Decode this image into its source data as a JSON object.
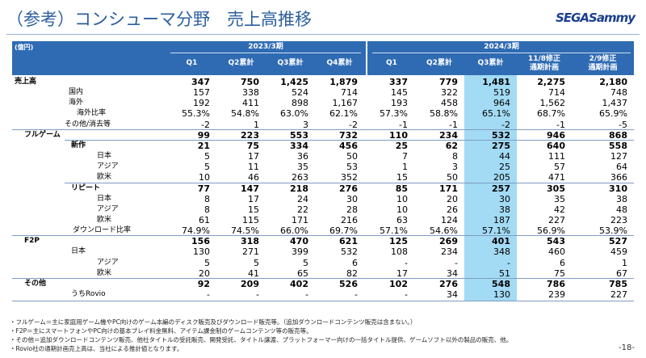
{
  "header": {
    "title": "（参考）コンシューマ分野　売上高推移",
    "logo": "SEGASammy"
  },
  "table": {
    "unit": "(億円)",
    "groups": [
      "2023/3期",
      "2024/3期"
    ],
    "columns": [
      "Q1",
      "Q2累計",
      "Q3累計",
      "Q4累計",
      "Q1",
      "Q2累計",
      "Q3累計",
      "11/8修正\n通期計画",
      "2/9修正\n通期計画"
    ],
    "rows": [
      [
        "売上高",
        "347",
        "750",
        "1,425",
        "1,879",
        "337",
        "779",
        "1,481",
        "2,275",
        "2,180"
      ],
      [
        "国内",
        "157",
        "338",
        "524",
        "714",
        "145",
        "322",
        "519",
        "714",
        "748"
      ],
      [
        "海外",
        "192",
        "411",
        "898",
        "1,167",
        "193",
        "458",
        "964",
        "1,562",
        "1,437"
      ],
      [
        "海外比率",
        "55.3%",
        "54.8%",
        "63.0%",
        "62.1%",
        "57.3%",
        "58.8%",
        "65.1%",
        "68.7%",
        "65.9%"
      ],
      [
        "その他/消去等",
        "-2",
        "1",
        "3",
        "-2",
        "-1",
        "-1",
        "-2",
        "-1",
        "-5"
      ],
      [
        "フルゲーム",
        "99",
        "223",
        "553",
        "732",
        "110",
        "234",
        "532",
        "946",
        "868"
      ],
      [
        "新作",
        "21",
        "75",
        "334",
        "456",
        "25",
        "62",
        "275",
        "640",
        "558"
      ],
      [
        "日本",
        "5",
        "17",
        "36",
        "50",
        "7",
        "8",
        "44",
        "111",
        "127"
      ],
      [
        "アジア",
        "5",
        "11",
        "35",
        "53",
        "1",
        "3",
        "25",
        "57",
        "64"
      ],
      [
        "欧米",
        "10",
        "46",
        "263",
        "352",
        "15",
        "50",
        "205",
        "471",
        "366"
      ],
      [
        "リピート",
        "77",
        "147",
        "218",
        "276",
        "85",
        "171",
        "257",
        "305",
        "310"
      ],
      [
        "日本",
        "8",
        "17",
        "24",
        "30",
        "10",
        "20",
        "30",
        "35",
        "38"
      ],
      [
        "アジア",
        "8",
        "15",
        "22",
        "28",
        "10",
        "26",
        "38",
        "42",
        "48"
      ],
      [
        "欧米",
        "61",
        "115",
        "171",
        "216",
        "63",
        "124",
        "187",
        "227",
        "223"
      ],
      [
        "ダウンロード比率",
        "74.9%",
        "74.5%",
        "66.0%",
        "69.7%",
        "57.1%",
        "54.6%",
        "57.1%",
        "56.9%",
        "53.9%"
      ],
      [
        "F2P",
        "156",
        "318",
        "470",
        "621",
        "125",
        "269",
        "401",
        "543",
        "527"
      ],
      [
        "日本",
        "130",
        "271",
        "399",
        "532",
        "108",
        "234",
        "348",
        "460",
        "459"
      ],
      [
        "アジア",
        "5",
        "5",
        "5",
        "6",
        "-",
        "-",
        "-",
        "6",
        "1"
      ],
      [
        "欧米",
        "20",
        "41",
        "65",
        "82",
        "17",
        "34",
        "51",
        "75",
        "67"
      ],
      [
        "その他",
        "92",
        "209",
        "402",
        "526",
        "102",
        "276",
        "548",
        "786",
        "785"
      ],
      [
        "うちRovio",
        "-",
        "-",
        "-",
        "-",
        "-",
        "34",
        "130",
        "239",
        "227"
      ]
    ]
  },
  "notes": [
    "・フルゲーム＝主に家庭用ゲーム機やPC向けのゲーム本編のディスク販売及びダウンロード販売等。（追加ダウンロードコンテンツ販売は含まない。）",
    "・F2P＝主にスマートフォンやPC向けの基本プレイ料金無料、アイテム課金制のゲームコンテンツ等の販売等。",
    "・その他＝追加ダウンロードコンテンツ販売、他社タイトルの受託販売、開発受託、タイトル譲渡、プラットフォーマー向けの一括タイトル提供、ゲームソフト以外の製品の販売、他。",
    "・Rovio社の通期計画売上高は、当社による推計値となります。"
  ],
  "footer": {
    "page": "-18-"
  }
}
